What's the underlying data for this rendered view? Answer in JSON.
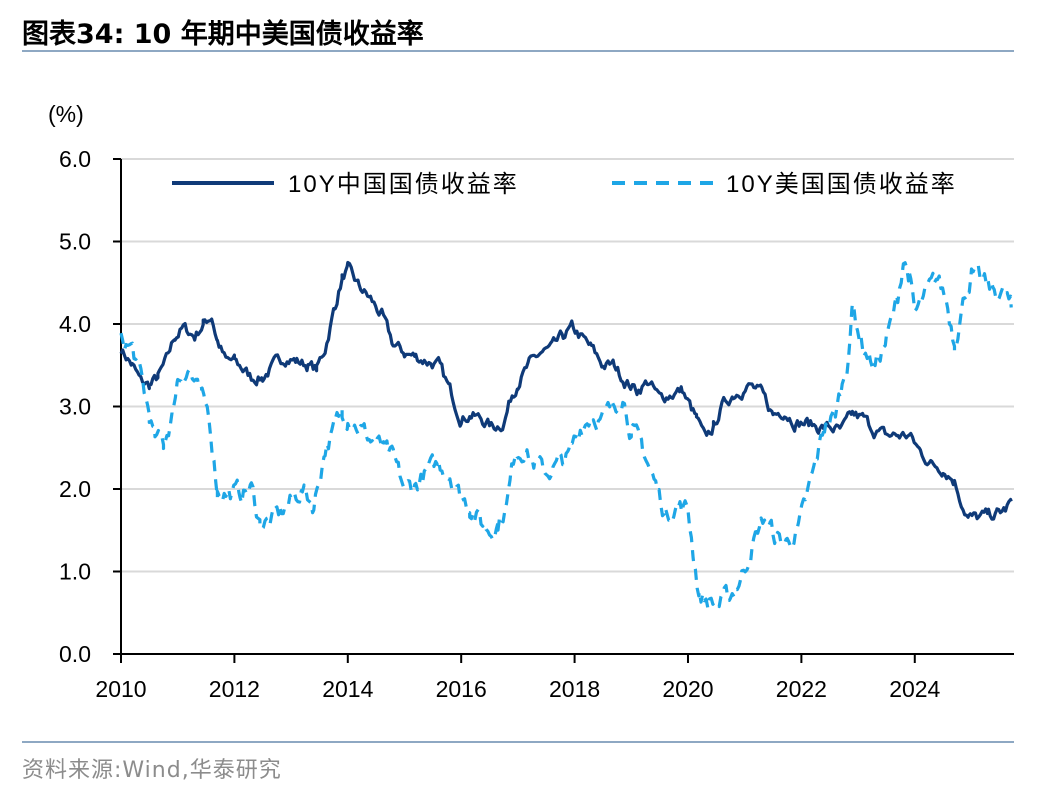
{
  "header": {
    "title": "图表34:  10 年期中美国债收益率"
  },
  "footer": {
    "source": "资料来源:Wind,华泰研究"
  },
  "colors": {
    "china": "#0F3A78",
    "us": "#1EA6E6",
    "rule": "#8EA8C3",
    "grid": "#D9D9D9"
  },
  "chart_data": {
    "type": "line",
    "title": "10 年期中美国债收益率",
    "ylabel": "(%)",
    "xlabel": "",
    "ylim": [
      0,
      6
    ],
    "xlim": [
      2010.0,
      2025.75
    ],
    "yticks": [
      "0.0",
      "1.0",
      "2.0",
      "3.0",
      "4.0",
      "5.0",
      "6.0"
    ],
    "xticks": [
      "2010",
      "2012",
      "2014",
      "2016",
      "2018",
      "2020",
      "2022",
      "2024"
    ],
    "grid": "horizontal",
    "legend_position": "top",
    "series": [
      {
        "name": "10Y中国国债收益率",
        "style": "solid",
        "x": [
          2010.0,
          2010.2,
          2010.35,
          2010.5,
          2010.65,
          2010.8,
          2010.95,
          2011.1,
          2011.3,
          2011.45,
          2011.6,
          2011.7,
          2011.85,
          2012.0,
          2012.15,
          2012.3,
          2012.5,
          2012.7,
          2012.9,
          2013.1,
          2013.3,
          2013.45,
          2013.6,
          2013.75,
          2013.9,
          2014.0,
          2014.2,
          2014.4,
          2014.6,
          2014.8,
          2015.0,
          2015.2,
          2015.4,
          2015.6,
          2015.8,
          2016.0,
          2016.15,
          2016.35,
          2016.55,
          2016.75,
          2016.9,
          2017.0,
          2017.2,
          2017.4,
          2017.6,
          2017.8,
          2017.95,
          2018.1,
          2018.3,
          2018.5,
          2018.7,
          2018.9,
          2019.1,
          2019.3,
          2019.5,
          2019.7,
          2019.9,
          2020.0,
          2020.15,
          2020.3,
          2020.45,
          2020.6,
          2020.8,
          2020.95,
          2021.1,
          2021.3,
          2021.5,
          2021.7,
          2021.9,
          2022.1,
          2022.3,
          2022.5,
          2022.7,
          2022.9,
          2023.1,
          2023.3,
          2023.5,
          2023.7,
          2023.9,
          2024.1,
          2024.3,
          2024.5,
          2024.7,
          2024.85,
          2024.95,
          2025.1,
          2025.3,
          2025.45,
          2025.6,
          2025.7
        ],
        "values": [
          3.7,
          3.5,
          3.3,
          3.25,
          3.35,
          3.55,
          3.85,
          3.95,
          3.85,
          4.0,
          4.1,
          3.8,
          3.55,
          3.55,
          3.45,
          3.35,
          3.35,
          3.5,
          3.6,
          3.55,
          3.5,
          3.45,
          3.7,
          4.15,
          4.55,
          4.65,
          4.45,
          4.3,
          4.1,
          3.75,
          3.65,
          3.6,
          3.55,
          3.5,
          3.2,
          2.85,
          2.9,
          2.85,
          2.75,
          2.8,
          3.15,
          3.3,
          3.5,
          3.65,
          3.7,
          3.85,
          3.95,
          3.85,
          3.7,
          3.5,
          3.5,
          3.3,
          3.2,
          3.3,
          3.1,
          3.15,
          3.2,
          3.05,
          2.85,
          2.6,
          2.75,
          3.0,
          3.15,
          3.2,
          3.25,
          3.15,
          2.9,
          2.95,
          2.8,
          2.8,
          2.75,
          2.75,
          2.7,
          2.9,
          2.85,
          2.7,
          2.65,
          2.65,
          2.65,
          2.45,
          2.3,
          2.25,
          2.1,
          1.8,
          1.65,
          1.65,
          1.68,
          1.7,
          1.75,
          1.85
        ]
      },
      {
        "name": "10Y美国国债收益率",
        "style": "dashed",
        "x": [
          2010.0,
          2010.2,
          2010.35,
          2010.5,
          2010.6,
          2010.75,
          2010.9,
          2011.0,
          2011.2,
          2011.4,
          2011.55,
          2011.7,
          2011.9,
          2012.1,
          2012.3,
          2012.45,
          2012.6,
          2012.8,
          2013.0,
          2013.2,
          2013.4,
          2013.6,
          2013.75,
          2013.9,
          2014.0,
          2014.2,
          2014.4,
          2014.6,
          2014.8,
          2015.0,
          2015.2,
          2015.4,
          2015.6,
          2015.8,
          2016.0,
          2016.15,
          2016.35,
          2016.5,
          2016.65,
          2016.8,
          2016.95,
          2017.1,
          2017.3,
          2017.5,
          2017.7,
          2017.9,
          2018.1,
          2018.3,
          2018.5,
          2018.7,
          2018.85,
          2019.0,
          2019.2,
          2019.4,
          2019.6,
          2019.8,
          2020.0,
          2020.1,
          2020.2,
          2020.35,
          2020.55,
          2020.75,
          2020.95,
          2021.2,
          2021.35,
          2021.55,
          2021.75,
          2021.95,
          2022.1,
          2022.25,
          2022.4,
          2022.6,
          2022.8,
          2022.9,
          2023.1,
          2023.3,
          2023.5,
          2023.7,
          2023.8,
          2023.9,
          2024.0,
          2024.2,
          2024.4,
          2024.55,
          2024.7,
          2024.9,
          2025.0,
          2025.2,
          2025.4,
          2025.6,
          2025.7
        ],
        "values": [
          3.8,
          3.7,
          3.35,
          2.9,
          2.6,
          2.55,
          2.9,
          3.35,
          3.45,
          3.1,
          2.9,
          2.0,
          1.95,
          1.95,
          2.0,
          1.6,
          1.6,
          1.7,
          1.85,
          2.0,
          1.8,
          2.5,
          2.7,
          2.95,
          2.9,
          2.75,
          2.6,
          2.5,
          2.35,
          2.0,
          2.05,
          2.2,
          2.3,
          2.2,
          1.9,
          1.8,
          1.6,
          1.5,
          1.6,
          1.8,
          2.45,
          2.5,
          2.3,
          2.2,
          2.3,
          2.4,
          2.75,
          2.9,
          2.85,
          3.0,
          3.15,
          2.7,
          2.5,
          2.1,
          1.7,
          1.8,
          1.75,
          1.2,
          0.7,
          0.65,
          0.6,
          0.7,
          0.95,
          1.45,
          1.65,
          1.4,
          1.35,
          1.5,
          1.9,
          2.3,
          2.75,
          2.9,
          3.5,
          4.2,
          3.7,
          3.5,
          3.8,
          4.3,
          4.8,
          4.6,
          4.1,
          4.35,
          4.55,
          4.3,
          3.8,
          4.4,
          4.6,
          4.5,
          4.4,
          4.35,
          4.2
        ]
      }
    ]
  }
}
